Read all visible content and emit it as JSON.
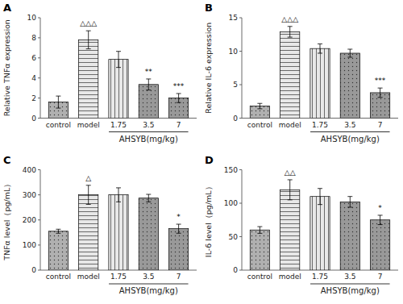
{
  "chart_data": [
    {
      "type": "bar",
      "title": "A",
      "ylabel": "Relative TNFα expression",
      "xlabel": "AHSYB(mg/kg)",
      "categories": [
        "control",
        "model",
        "1.75",
        "3.5",
        "7"
      ],
      "values": [
        1.6,
        7.8,
        5.85,
        3.35,
        2.0
      ],
      "errors": [
        0.6,
        0.9,
        0.8,
        0.55,
        0.45
      ],
      "colors": [
        "#b0b0b0",
        "#e8e8e8",
        "#e8e8e8",
        "#999999",
        "#999999"
      ],
      "ylim": [
        0,
        10
      ],
      "yticks": [
        0,
        2,
        4,
        6,
        8,
        10
      ],
      "annotations": [
        {
          "category": "model",
          "text": "△△△"
        },
        {
          "category": "3.5",
          "text": "**"
        },
        {
          "category": "7",
          "text": "***"
        }
      ]
    },
    {
      "type": "bar",
      "title": "B",
      "ylabel": "Relative IL-6 expression",
      "xlabel": "AHSYB(mg/kg)",
      "categories": [
        "control",
        "model",
        "1.75",
        "3.5",
        "7"
      ],
      "values": [
        1.8,
        12.9,
        10.4,
        9.7,
        3.8
      ],
      "errors": [
        0.4,
        0.8,
        0.7,
        0.6,
        0.7
      ],
      "colors": [
        "#b0b0b0",
        "#e8e8e8",
        "#e8e8e8",
        "#999999",
        "#999999"
      ],
      "ylim": [
        0,
        15
      ],
      "yticks": [
        0,
        5,
        10,
        15
      ],
      "annotations": [
        {
          "category": "model",
          "text": "△△△"
        },
        {
          "category": "7",
          "text": "***"
        }
      ]
    },
    {
      "type": "bar",
      "title": "C",
      "ylabel": "TNFα level（pg/mL）",
      "xlabel": "AHSYB(mg/kg)",
      "categories": [
        "control",
        "model",
        "1.75",
        "3.5",
        "7"
      ],
      "values": [
        155,
        300,
        300,
        287,
        165
      ],
      "errors": [
        8,
        38,
        28,
        15,
        18
      ],
      "colors": [
        "#b0b0b0",
        "#e8e8e8",
        "#e8e8e8",
        "#999999",
        "#999999"
      ],
      "ylim": [
        0,
        400
      ],
      "yticks": [
        0,
        100,
        200,
        300,
        400
      ],
      "annotations": [
        {
          "category": "model",
          "text": "△"
        },
        {
          "category": "7",
          "text": "*"
        }
      ]
    },
    {
      "type": "bar",
      "title": "D",
      "ylabel": "IL-6 level（pg/mL）",
      "xlabel": "AHSYB(mg/kg)",
      "categories": [
        "control",
        "model",
        "1.75",
        "3.5",
        "7"
      ],
      "values": [
        60,
        120,
        110,
        102,
        75
      ],
      "errors": [
        5,
        15,
        12,
        8,
        7
      ],
      "colors": [
        "#b0b0b0",
        "#e8e8e8",
        "#e8e8e8",
        "#999999",
        "#999999"
      ],
      "ylim": [
        0,
        150
      ],
      "yticks": [
        0,
        50,
        100,
        150
      ],
      "annotations": [
        {
          "category": "model",
          "text": "△△"
        },
        {
          "category": "7",
          "text": "*"
        }
      ]
    }
  ]
}
